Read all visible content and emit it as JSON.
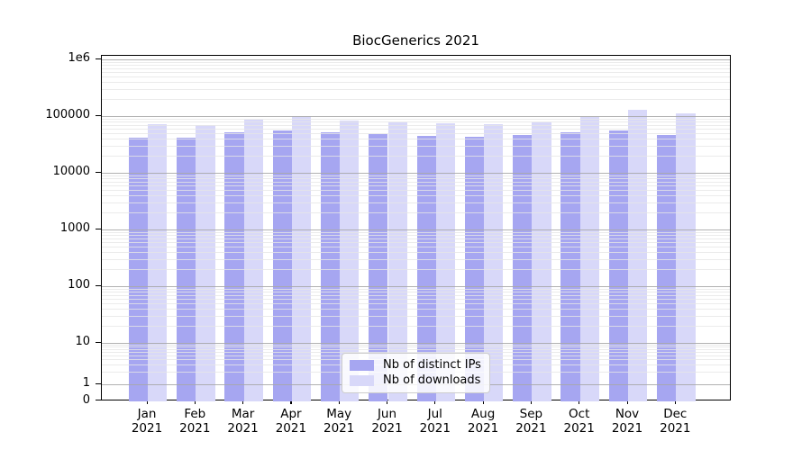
{
  "title": "BiocGenerics 2021",
  "y_axis": {
    "ticks": [
      {
        "label": "1e6",
        "value": 1000000
      },
      {
        "label": "100000",
        "value": 100000
      },
      {
        "label": "10000",
        "value": 10000
      },
      {
        "label": "1000",
        "value": 1000
      },
      {
        "label": "100",
        "value": 100
      },
      {
        "label": "10",
        "value": 10
      },
      {
        "label": "1",
        "value": 1
      },
      {
        "label": "0",
        "value": 0
      }
    ]
  },
  "chart_data": {
    "type": "bar",
    "title": "BiocGenerics 2021",
    "yscale": "symlog",
    "ylim": [
      0,
      1200000
    ],
    "grid": true,
    "legend_position": "lower center",
    "categories": [
      "Jan 2021",
      "Feb 2021",
      "Mar 2021",
      "Apr 2021",
      "May 2021",
      "Jun 2021",
      "Jul 2021",
      "Aug 2021",
      "Sep 2021",
      "Oct 2021",
      "Nov 2021",
      "Dec 2021"
    ],
    "series": [
      {
        "name": "Nb of distinct IPs",
        "color": "#a6a6f1",
        "values": [
          41500,
          41200,
          51500,
          55500,
          52300,
          48800,
          45500,
          43600,
          46500,
          51800,
          54800,
          45900
        ]
      },
      {
        "name": "Nb of downloads",
        "color": "#d8d8f9",
        "values": [
          71500,
          69000,
          86000,
          98500,
          82500,
          78500,
          74000,
          71000,
          76500,
          97500,
          129000,
          110000
        ]
      }
    ]
  },
  "colors": {
    "major_grid": "#a8a8a8",
    "minor_grid": "#e6e6e6",
    "axis": "#000000",
    "background": "#ffffff"
  }
}
